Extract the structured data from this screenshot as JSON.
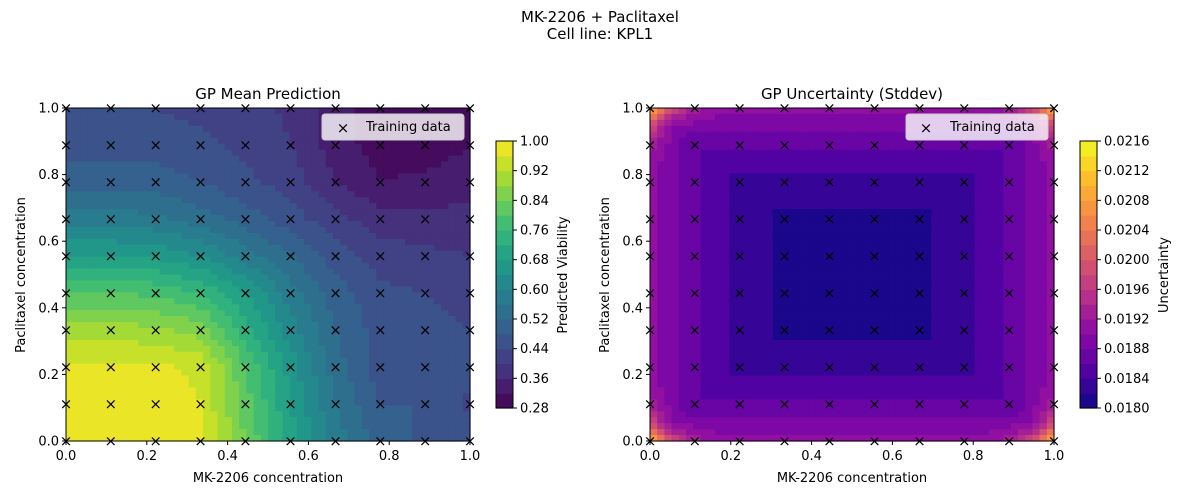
{
  "figure": {
    "title_line1": "MK-2206 + Paclitaxel",
    "title_line2": "Cell line: KPL1"
  },
  "chart_data": [
    {
      "type": "heatmap",
      "title": "GP Mean Prediction",
      "xlabel": "MK-2206 concentration",
      "ylabel": "Paclitaxel concentration",
      "xlim": [
        0,
        1
      ],
      "ylim": [
        0,
        1
      ],
      "x_ticks": [
        "0.0",
        "0.2",
        "0.4",
        "0.6",
        "0.8",
        "1.0"
      ],
      "y_ticks": [
        "0.0",
        "0.2",
        "0.4",
        "0.6",
        "0.8",
        "1.0"
      ],
      "legend_label": "Training data",
      "legend_position": "top-right",
      "colorbar": {
        "label": "Predicted Viability",
        "colormap": "viridis",
        "range": [
          0.28,
          1.0
        ],
        "ticks": [
          "0.28",
          "0.36",
          "0.44",
          "0.52",
          "0.60",
          "0.68",
          "0.76",
          "0.84",
          "0.92",
          "1.00"
        ]
      },
      "training_points": {
        "x": [
          0,
          0.111,
          0.222,
          0.333,
          0.444,
          0.556,
          0.667,
          0.778,
          0.889,
          1.0
        ],
        "y": [
          0,
          0.111,
          0.222,
          0.333,
          0.444,
          0.556,
          0.667,
          0.778,
          0.889,
          1.0
        ]
      },
      "grid_x": [
        0,
        0.111,
        0.222,
        0.333,
        0.444,
        0.556,
        0.667,
        0.778,
        0.889,
        1.0
      ],
      "grid_y": [
        0,
        0.111,
        0.222,
        0.333,
        0.444,
        0.556,
        0.667,
        0.778,
        0.889,
        1.0
      ],
      "z": [
        [
          0.98,
          0.98,
          0.98,
          0.97,
          0.84,
          0.7,
          0.58,
          0.5,
          0.47,
          0.46
        ],
        [
          0.98,
          0.98,
          0.98,
          0.96,
          0.82,
          0.68,
          0.56,
          0.48,
          0.48,
          0.43
        ],
        [
          0.97,
          0.97,
          0.97,
          0.95,
          0.8,
          0.66,
          0.54,
          0.46,
          0.48,
          0.45
        ],
        [
          0.9,
          0.9,
          0.89,
          0.86,
          0.74,
          0.62,
          0.52,
          0.46,
          0.45,
          0.44
        ],
        [
          0.8,
          0.8,
          0.79,
          0.76,
          0.68,
          0.58,
          0.5,
          0.45,
          0.44,
          0.43
        ],
        [
          0.68,
          0.68,
          0.67,
          0.64,
          0.58,
          0.52,
          0.46,
          0.42,
          0.41,
          0.4
        ],
        [
          0.58,
          0.58,
          0.57,
          0.54,
          0.5,
          0.46,
          0.41,
          0.38,
          0.37,
          0.37
        ],
        [
          0.5,
          0.5,
          0.5,
          0.48,
          0.45,
          0.42,
          0.36,
          0.32,
          0.33,
          0.35
        ],
        [
          0.46,
          0.46,
          0.46,
          0.45,
          0.43,
          0.4,
          0.34,
          0.3,
          0.29,
          0.32
        ],
        [
          0.44,
          0.44,
          0.44,
          0.43,
          0.42,
          0.39,
          0.34,
          0.3,
          0.29,
          0.31
        ]
      ]
    },
    {
      "type": "heatmap",
      "title": "GP Uncertainty (Stddev)",
      "xlabel": "MK-2206 concentration",
      "ylabel": "Paclitaxel concentration",
      "xlim": [
        0,
        1
      ],
      "ylim": [
        0,
        1
      ],
      "x_ticks": [
        "0.0",
        "0.2",
        "0.4",
        "0.6",
        "0.8",
        "1.0"
      ],
      "y_ticks": [
        "0.0",
        "0.2",
        "0.4",
        "0.6",
        "0.8",
        "1.0"
      ],
      "legend_label": "Training data",
      "legend_position": "top-right",
      "colorbar": {
        "label": "Uncertainty",
        "colormap": "plasma",
        "range": [
          0.018,
          0.0216
        ],
        "ticks": [
          "0.0180",
          "0.0184",
          "0.0188",
          "0.0192",
          "0.0196",
          "0.0200",
          "0.0204",
          "0.0208",
          "0.0212",
          "0.0216"
        ]
      },
      "training_points": {
        "x": [
          0,
          0.111,
          0.222,
          0.333,
          0.444,
          0.556,
          0.667,
          0.778,
          0.889,
          1.0
        ],
        "y": [
          0,
          0.111,
          0.222,
          0.333,
          0.444,
          0.556,
          0.667,
          0.778,
          0.889,
          1.0
        ]
      },
      "model": {
        "center": 0.0181,
        "edge_base": 0.0191,
        "corner_peak": 0.0216
      }
    }
  ]
}
